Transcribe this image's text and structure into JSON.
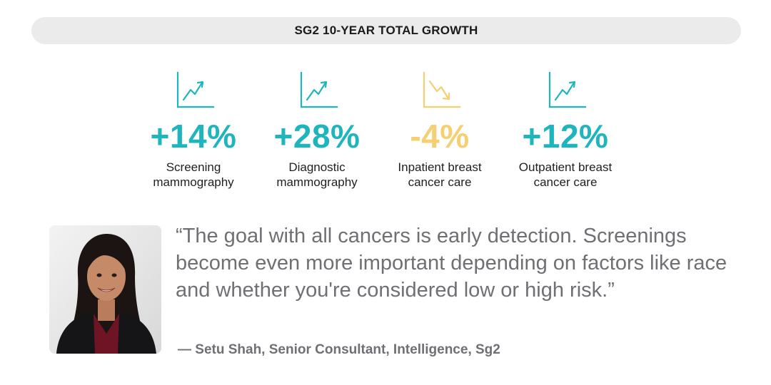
{
  "header": {
    "title": "SG2 10-YEAR TOTAL GROWTH"
  },
  "stats": [
    {
      "value": "+14%",
      "label": "Screening\nmammography",
      "trend": "up",
      "color": "#1fb5bd",
      "icon": "trend-up-chart-icon"
    },
    {
      "value": "+28%",
      "label": "Diagnostic\nmammography",
      "trend": "up",
      "color": "#1fb5bd",
      "icon": "trend-up-chart-icon"
    },
    {
      "value": "-4%",
      "label": "Inpatient breast\ncancer care",
      "trend": "down",
      "color": "#f6cf72",
      "icon": "trend-down-chart-icon"
    },
    {
      "value": "+12%",
      "label": "Outpatient breast\ncancer care",
      "trend": "up",
      "color": "#1fb5bd",
      "icon": "trend-up-chart-icon"
    }
  ],
  "quote": {
    "text": "“The goal with all cancers is early detection. Screenings become even more important depending on factors like race and whether you're considered low or high risk.”",
    "attribution": "— Setu Shah, Senior Consultant, Intelligence, Sg2"
  },
  "colors": {
    "up": "#1fb5bd",
    "down": "#f6cf72",
    "quote": "#6f6f74",
    "title_bar": "#ebebeb"
  }
}
